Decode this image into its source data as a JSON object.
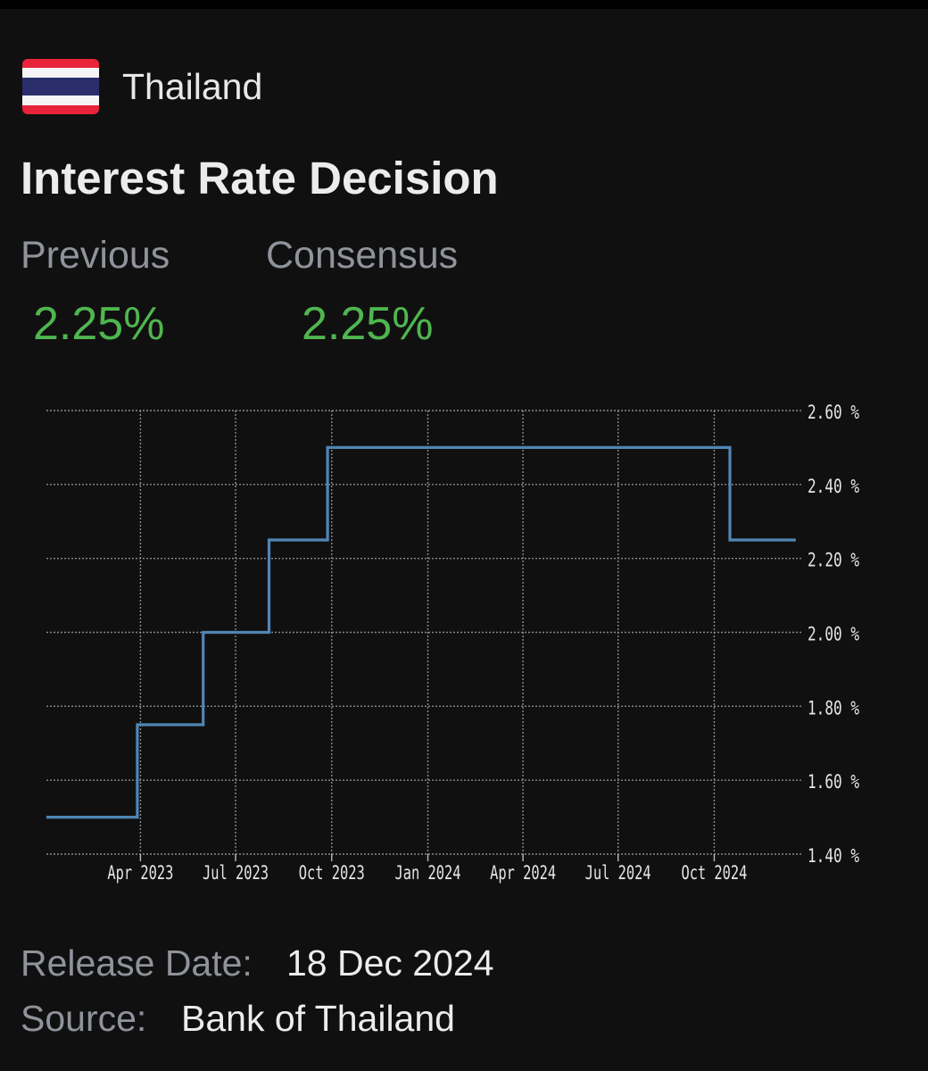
{
  "header": {
    "country": "Thailand",
    "flag_icon": "thailand-flag-icon",
    "title": "Interest Rate Decision"
  },
  "stats": {
    "previous_label": "Previous",
    "previous_value": "2.25%",
    "consensus_label": "Consensus",
    "consensus_value": "2.25%",
    "value_color": "#4fb64f"
  },
  "chart_data": {
    "type": "line",
    "step": true,
    "series": [
      {
        "points": [
          {
            "x": "2023-01-01",
            "y": 1.5
          },
          {
            "x": "2023-03-29",
            "y": 1.5
          },
          {
            "x": "2023-03-29",
            "y": 1.75
          },
          {
            "x": "2023-05-31",
            "y": 1.75
          },
          {
            "x": "2023-05-31",
            "y": 2.0
          },
          {
            "x": "2023-08-02",
            "y": 2.0
          },
          {
            "x": "2023-08-02",
            "y": 2.25
          },
          {
            "x": "2023-09-27",
            "y": 2.25
          },
          {
            "x": "2023-09-27",
            "y": 2.5
          },
          {
            "x": "2024-10-16",
            "y": 2.5
          },
          {
            "x": "2024-10-16",
            "y": 2.25
          },
          {
            "x": "2024-12-18",
            "y": 2.25
          }
        ],
        "color": "#4f86b4"
      }
    ],
    "x_ticks": [
      {
        "label": "Apr 2023",
        "date": "2023-04-01"
      },
      {
        "label": "Jul 2023",
        "date": "2023-07-01"
      },
      {
        "label": "Oct 2023",
        "date": "2023-10-01"
      },
      {
        "label": "Jan 2024",
        "date": "2024-01-01"
      },
      {
        "label": "Apr 2024",
        "date": "2024-04-01"
      },
      {
        "label": "Jul 2024",
        "date": "2024-07-01"
      },
      {
        "label": "Oct 2024",
        "date": "2024-10-01"
      }
    ],
    "y_ticks": [
      {
        "label": "2.60 %",
        "value": 2.6
      },
      {
        "label": "2.40 %",
        "value": 2.4
      },
      {
        "label": "2.20 %",
        "value": 2.2
      },
      {
        "label": "2.00 %",
        "value": 2.0
      },
      {
        "label": "1.80 %",
        "value": 1.8
      },
      {
        "label": "1.60 %",
        "value": 1.6
      },
      {
        "label": "1.40 %",
        "value": 1.4
      }
    ],
    "ylim": [
      1.4,
      2.6
    ],
    "xlim": [
      "2023-01-01",
      "2024-12-25"
    ],
    "grid": true,
    "grid_color": "#8a8a8a",
    "y_axis_position": "right"
  },
  "footer": {
    "release_label": "Release Date:",
    "release_value": "18 Dec 2024",
    "source_label": "Source:",
    "source_value": "Bank of Thailand"
  }
}
